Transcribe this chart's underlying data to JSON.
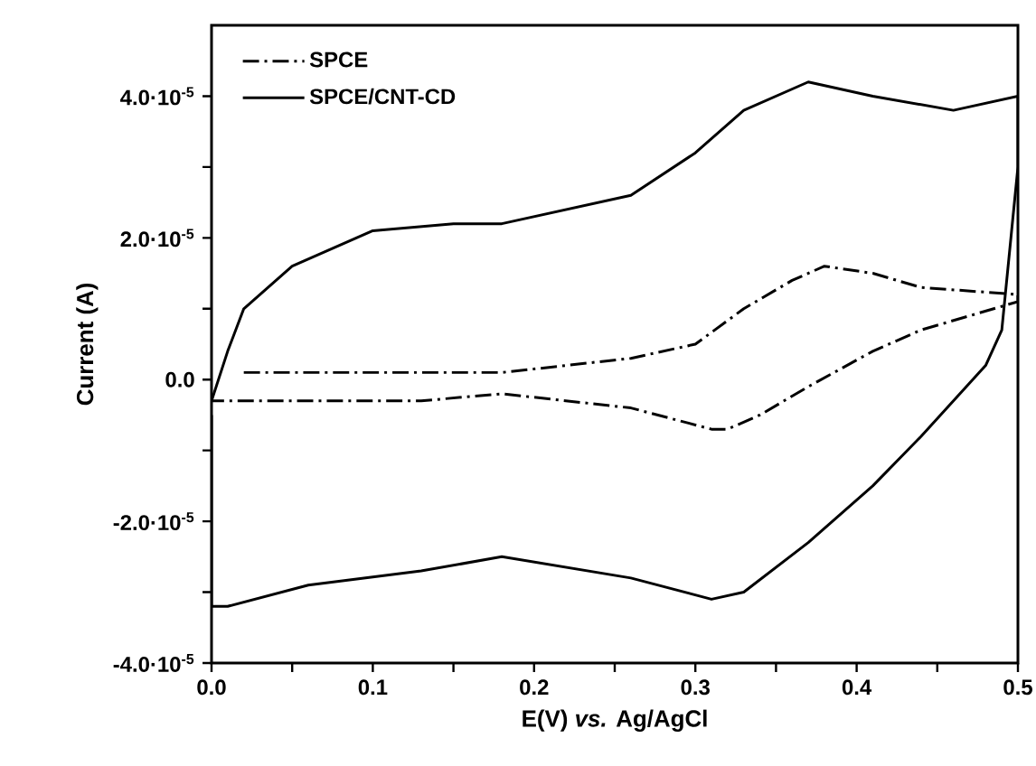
{
  "chart_data": {
    "type": "line",
    "xlabel": "E(V) *vs.* Ag/AgCl",
    "ylabel": "Current (A)",
    "xlim": [
      0,
      0.5
    ],
    "ylim": [
      -4e-05,
      5e-05
    ],
    "xticks": [
      {
        "value": 0,
        "label": "0.0"
      },
      {
        "value": 0.05,
        "label": null
      },
      {
        "value": 0.1,
        "label": "0.1"
      },
      {
        "value": 0.15,
        "label": null
      },
      {
        "value": 0.2,
        "label": "0.2"
      },
      {
        "value": 0.25,
        "label": null
      },
      {
        "value": 0.3,
        "label": "0.3"
      },
      {
        "value": 0.35,
        "label": null
      },
      {
        "value": 0.4,
        "label": "0.4"
      },
      {
        "value": 0.45,
        "label": null
      },
      {
        "value": 0.5,
        "label": "0.5"
      }
    ],
    "yticks": [
      {
        "value": -4e-05,
        "label": "-4.0·10$^{-5}$"
      },
      {
        "value": -3e-05,
        "label": null
      },
      {
        "value": -2e-05,
        "label": "-2.0·10$^{-5}$"
      },
      {
        "value": -1e-05,
        "label": null
      },
      {
        "value": 0,
        "label": "0.0"
      },
      {
        "value": 1e-05,
        "label": null
      },
      {
        "value": 2e-05,
        "label": "2.0·10$^{-5}$"
      },
      {
        "value": 3e-05,
        "label": null
      },
      {
        "value": 4e-05,
        "label": "4.0·10$^{-5}$"
      }
    ],
    "legend": "top left",
    "marker": "none",
    "series": [
      {
        "name": "SPCE",
        "color": "#000000",
        "line_style": "dashed",
        "x": [
          0.02,
          0.1,
          0.18,
          0.26,
          0.3,
          0.33,
          0.36,
          0.38,
          0.41,
          0.44,
          0.5,
          0.5,
          0.44,
          0.41,
          0.37,
          0.34,
          0.32,
          0.31,
          0.26,
          0.18,
          0.13,
          0.0
        ],
        "values": [
          1e-06,
          1e-06,
          1e-06,
          3e-06,
          5e-06,
          1e-05,
          1.4e-05,
          1.6e-05,
          1.5e-05,
          1.3e-05,
          1.2e-05,
          1.1e-05,
          7e-06,
          4e-06,
          -1e-06,
          -5e-06,
          -7e-06,
          -7e-06,
          -4e-06,
          -2e-06,
          -3e-06,
          -3e-06
        ]
      },
      {
        "name": "SPCE/CNT-CD",
        "color": "#000000",
        "line_style": "solid",
        "x": [
          0,
          0.01,
          0.02,
          0.05,
          0.1,
          0.15,
          0.18,
          0.26,
          0.3,
          0.33,
          0.37,
          0.41,
          0.46,
          0.5,
          0.5,
          0.49,
          0.48,
          0.44,
          0.41,
          0.37,
          0.33,
          0.31,
          0.26,
          0.18,
          0.13,
          0.06,
          0.01,
          0.0,
          0
        ],
        "values": [
          -3e-06,
          4e-06,
          1e-05,
          1.6e-05,
          2.1e-05,
          2.2e-05,
          2.2e-05,
          2.6e-05,
          3.2e-05,
          3.8e-05,
          4.2e-05,
          4e-05,
          3.8e-05,
          4e-05,
          3e-05,
          7e-06,
          2e-06,
          -8e-06,
          -1.5e-05,
          -2.3e-05,
          -3e-05,
          -3.1e-05,
          -2.8e-05,
          -2.5e-05,
          -2.7e-05,
          -2.9e-05,
          -3.2e-05,
          -3.2e-05,
          -5e-06
        ]
      }
    ]
  }
}
